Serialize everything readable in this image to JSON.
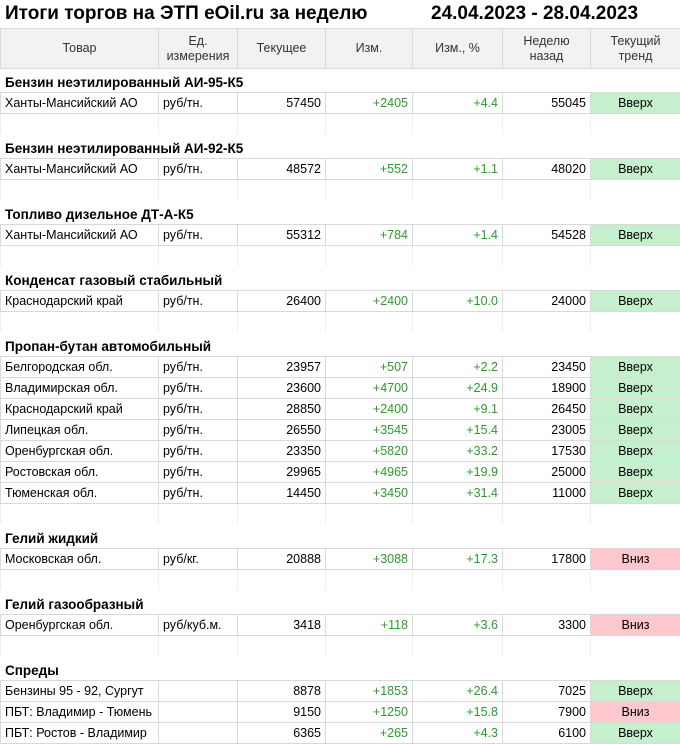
{
  "header": {
    "title": "Итоги торгов на ЭТП eOil.ru за неделю",
    "period": "24.04.2023 - 28.04.2023"
  },
  "columns": [
    "Товар",
    "Ед.\nизмерения",
    "Текущее",
    "Изм.",
    "Изм., %",
    "Неделю\nназад",
    "Текущий\nтренд"
  ],
  "sections": [
    {
      "title": "Бензин неэтилированный АИ-95-К5",
      "rows": [
        {
          "cells": [
            "Ханты-Мансийский АО",
            "руб/тн.",
            "57450",
            "+2405",
            "+4.4",
            "55045",
            "Вверх"
          ],
          "trend_color": "#c6efce"
        }
      ]
    },
    {
      "title": "Бензин неэтилированный АИ-92-К5",
      "rows": [
        {
          "cells": [
            "Ханты-Мансийский АО",
            "руб/тн.",
            "48572",
            "+552",
            "+1.1",
            "48020",
            "Вверх"
          ],
          "trend_color": "#c6efce"
        }
      ]
    },
    {
      "title": "Топливо дизельное ДТ-А-К5",
      "rows": [
        {
          "cells": [
            "Ханты-Мансийский АО",
            "руб/тн.",
            "55312",
            "+784",
            "+1.4",
            "54528",
            "Вверх"
          ],
          "trend_color": "#c6efce"
        }
      ]
    },
    {
      "title": "Конденсат газовый стабильный",
      "rows": [
        {
          "cells": [
            "Краснодарский край",
            "руб/тн.",
            "26400",
            "+2400",
            "+10.0",
            "24000",
            "Вверх"
          ],
          "trend_color": "#c6efce"
        }
      ]
    },
    {
      "title": "Пропан-бутан автомобильный",
      "rows": [
        {
          "cells": [
            "Белгородская обл.",
            "руб/тн.",
            "23957",
            "+507",
            "+2.2",
            "23450",
            "Вверх"
          ],
          "trend_color": "#c6efce"
        },
        {
          "cells": [
            "Владимирская обл.",
            "руб/тн.",
            "23600",
            "+4700",
            "+24.9",
            "18900",
            "Вверх"
          ],
          "trend_color": "#c6efce"
        },
        {
          "cells": [
            "Краснодарский край",
            "руб/тн.",
            "28850",
            "+2400",
            "+9.1",
            "26450",
            "Вверх"
          ],
          "trend_color": "#c6efce"
        },
        {
          "cells": [
            "Липецкая обл.",
            "руб/тн.",
            "26550",
            "+3545",
            "+15.4",
            "23005",
            "Вверх"
          ],
          "trend_color": "#c6efce"
        },
        {
          "cells": [
            "Оренбургская обл.",
            "руб/тн.",
            "23350",
            "+5820",
            "+33.2",
            "17530",
            "Вверх"
          ],
          "trend_color": "#c6efce"
        },
        {
          "cells": [
            "Ростовская обл.",
            "руб/тн.",
            "29965",
            "+4965",
            "+19.9",
            "25000",
            "Вверх"
          ],
          "trend_color": "#c6efce"
        },
        {
          "cells": [
            "Тюменская обл.",
            "руб/тн.",
            "14450",
            "+3450",
            "+31.4",
            "11000",
            "Вверх"
          ],
          "trend_color": "#c6efce"
        }
      ]
    },
    {
      "title": "Гелий жидкий",
      "rows": [
        {
          "cells": [
            "Московская обл.",
            "руб/кг.",
            "20888",
            "+3088",
            "+17.3",
            "17800",
            "Вниз"
          ],
          "trend_color": "#ffc7ce"
        }
      ]
    },
    {
      "title": "Гелий газообразный",
      "rows": [
        {
          "cells": [
            "Оренбургская обл.",
            "руб/куб.м.",
            "3418",
            "+118",
            "+3.6",
            "3300",
            "Вниз"
          ],
          "trend_color": "#ffc7ce"
        }
      ]
    },
    {
      "title": "Спреды",
      "rows": [
        {
          "cells": [
            "Бензины 95 - 92, Сургут",
            "",
            "8878",
            "+1853",
            "+26.4",
            "7025",
            "Вверх"
          ],
          "trend_color": "#c6efce"
        },
        {
          "cells": [
            "ПБТ: Владимир - Тюмень",
            "",
            "9150",
            "+1250",
            "+15.8",
            "7900",
            "Вниз"
          ],
          "trend_color": "#ffc7ce"
        },
        {
          "cells": [
            "ПБТ: Ростов - Владимир",
            "",
            "6365",
            "+265",
            "+4.3",
            "6100",
            "Вверх"
          ],
          "trend_color": "#c6efce"
        }
      ]
    }
  ]
}
